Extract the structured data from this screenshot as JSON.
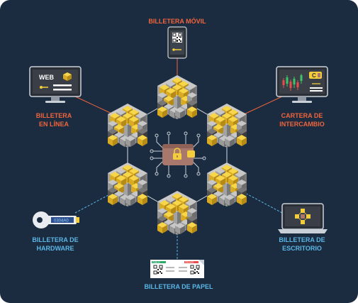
{
  "colors": {
    "background": "#1c2c40",
    "hot_label": "#f0643c",
    "cold_label": "#5ab6e6",
    "gold": "#f3cd3c",
    "cube_gray": "#8c8c8c",
    "wallet": "#a8786c"
  },
  "labels": {
    "mobile": "BILLETERA MÓVIL",
    "online_line1": "BILLETERA",
    "online_line2": "EN LÍNEA",
    "exchange_line1": "CARTERA DE",
    "exchange_line2": "INTERCAMBIO",
    "hardware_line1": "BILLETERA DE",
    "hardware_line2": "HARDWARE",
    "desktop_line1": "BILLETERA DE",
    "desktop_line2": "ESCRITORIO",
    "paper": "BILLETERA DE PAPEL"
  },
  "screens": {
    "web_text": "WEB",
    "hardware_code": "0304A0",
    "exchange_badge": "C"
  },
  "paper_wallet": {
    "public_label": "PUBLIC",
    "private_label": "PRIVATE"
  },
  "icons": [
    "phone-icon",
    "monitor-icon",
    "exchange-monitor-icon",
    "usb-key-icon",
    "laptop-icon",
    "paper-wallet-icon",
    "wallet-lock-icon",
    "blockchain-cube-icon"
  ]
}
